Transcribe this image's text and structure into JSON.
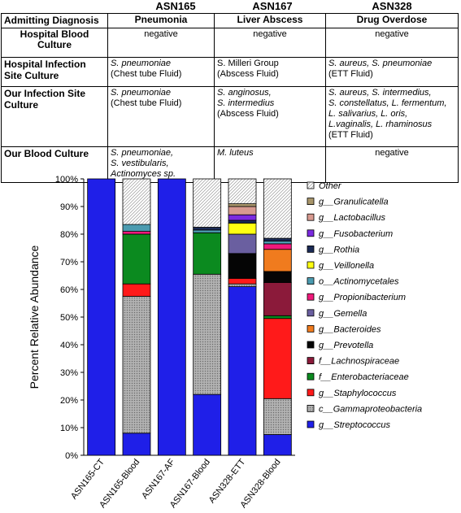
{
  "patients": [
    "ASN165",
    "ASN167",
    "ASN328"
  ],
  "table": {
    "corner": "Admitting Diagnosis",
    "diagnoses": [
      "Pneumonia",
      "Liver Abscess",
      "Drug Overdose"
    ],
    "rows": [
      {
        "label": "Hospital Blood Culture",
        "cells": [
          {
            "lines": [
              {
                "t": "negative",
                "i": false
              }
            ]
          },
          {
            "lines": [
              {
                "t": "negative",
                "i": false
              }
            ]
          },
          {
            "lines": [
              {
                "t": "negative",
                "i": false
              }
            ]
          }
        ]
      },
      {
        "label": "Hospital Infection Site Culture",
        "cells": [
          {
            "lines": [
              {
                "t": "S. pneumoniae",
                "i": true
              },
              {
                "t": "(Chest tube Fluid)",
                "i": false
              }
            ]
          },
          {
            "lines": [
              {
                "t": "S. Milleri Group",
                "i": false
              },
              {
                "t": "(Abscess Fluid)",
                "i": false
              }
            ]
          },
          {
            "lines": [
              {
                "t": "S. aureus, S. pneumoniae",
                "i": true
              },
              {
                "t": "(ETT Fluid)",
                "i": false
              }
            ]
          }
        ]
      },
      {
        "label": "Our Infection Site Culture",
        "cells": [
          {
            "lines": [
              {
                "t": "S. pneumoniae",
                "i": true
              },
              {
                "t": "(Chest tube Fluid)",
                "i": false
              }
            ]
          },
          {
            "lines": [
              {
                "t": "S. anginosus,",
                "i": true
              },
              {
                "t": "S. intermedius",
                "i": true
              },
              {
                "t": "(Abscess Fluid)",
                "i": false
              }
            ]
          },
          {
            "lines": [
              {
                "t": "S. aureus, S. intermedius,",
                "i": true
              },
              {
                "t": "S. constellatus, L. fermentum,",
                "i": true
              },
              {
                "t": "L. salivarius, L. oris,",
                "i": true
              },
              {
                "t": "L.vaginalis, L. rhaminosus",
                "i": true
              },
              {
                "t": "(ETT Fluid)",
                "i": false
              }
            ]
          }
        ]
      },
      {
        "label": "Our Blood Culture",
        "cells": [
          {
            "lines": [
              {
                "t": "S. pneumoniae,",
                "i": true
              },
              {
                "t": "S. vestibularis,",
                "i": true
              },
              {
                "t": "Actinomyces sp.",
                "i": true
              }
            ]
          },
          {
            "lines": [
              {
                "t": "M. luteus",
                "i": true
              }
            ]
          },
          {
            "lines": [
              {
                "t": "negative",
                "i": false
              }
            ],
            "center": true
          }
        ]
      }
    ]
  },
  "chart_data": {
    "type": "bar",
    "stacked": true,
    "ylabel": "Percent Relative Abundance",
    "ylim": [
      0,
      100
    ],
    "yticks": [
      "0%",
      "10%",
      "20%",
      "30%",
      "40%",
      "50%",
      "60%",
      "70%",
      "80%",
      "90%",
      "100%"
    ],
    "categories": [
      "ASN165-CT",
      "ASN165-Blood",
      "ASN167-AF",
      "ASN167-Blood",
      "ASN328-ETT",
      "ASN328-Blood"
    ],
    "legend_position": "right",
    "series": [
      {
        "name": "g__Streptococcus",
        "color": "#1f1fe8",
        "pattern": "none",
        "values": [
          100,
          8,
          100,
          22,
          61,
          7.5
        ]
      },
      {
        "name": "c__Gammaproteobacteria",
        "color": "#999999",
        "pattern": "dots",
        "values": [
          0,
          49.5,
          0,
          43.5,
          1,
          13
        ]
      },
      {
        "name": "g__Staphylococcus",
        "color": "#ff1a1a",
        "pattern": "none",
        "values": [
          0,
          4.5,
          0,
          0,
          2,
          29
        ]
      },
      {
        "name": "f__Enterobacteriaceae",
        "color": "#0b8a1f",
        "pattern": "none",
        "values": [
          0,
          18,
          0,
          15,
          0,
          1
        ]
      },
      {
        "name": "f__Lachnospiraceae",
        "color": "#8b1a3a",
        "pattern": "none",
        "values": [
          0,
          0,
          0,
          0,
          0,
          12
        ]
      },
      {
        "name": "g__Prevotella",
        "color": "#050505",
        "pattern": "none",
        "values": [
          0,
          0,
          0,
          0,
          9,
          4
        ]
      },
      {
        "name": "g__Bacteroides",
        "color": "#f07b1e",
        "pattern": "none",
        "values": [
          0,
          0,
          0,
          0,
          0,
          8
        ]
      },
      {
        "name": "g__Gemella",
        "color": "#6a5fa0",
        "pattern": "none",
        "values": [
          0,
          0,
          0,
          0,
          7,
          0
        ]
      },
      {
        "name": "g__Propionibacterium",
        "color": "#f0197b",
        "pattern": "none",
        "values": [
          0,
          1,
          0,
          0,
          0,
          2
        ]
      },
      {
        "name": "o__Actinomycetales",
        "color": "#4b9bb0",
        "pattern": "none",
        "values": [
          0,
          2.5,
          0,
          1,
          0,
          1
        ]
      },
      {
        "name": "g__Veillonella",
        "color": "#ffff11",
        "pattern": "none",
        "values": [
          0,
          0,
          0,
          0,
          4,
          0
        ]
      },
      {
        "name": "g__Rothia",
        "color": "#1a2a55",
        "pattern": "none",
        "values": [
          0,
          0,
          0,
          1,
          1,
          1
        ]
      },
      {
        "name": "g__Fusobacterium",
        "color": "#7b2ae0",
        "pattern": "none",
        "values": [
          0,
          0,
          0,
          0,
          2,
          0
        ]
      },
      {
        "name": "g__Lactobacillus",
        "color": "#d89a90",
        "pattern": "none",
        "values": [
          0,
          0,
          0,
          0,
          3,
          0
        ]
      },
      {
        "name": "g__Granulicatella",
        "color": "#a8956a",
        "pattern": "none",
        "values": [
          0,
          0,
          0,
          0,
          1,
          0
        ]
      },
      {
        "name": "Other",
        "color": "#e8e8e8",
        "pattern": "hatch",
        "values": [
          0,
          16.5,
          0,
          17.5,
          9,
          21.5
        ]
      }
    ]
  }
}
